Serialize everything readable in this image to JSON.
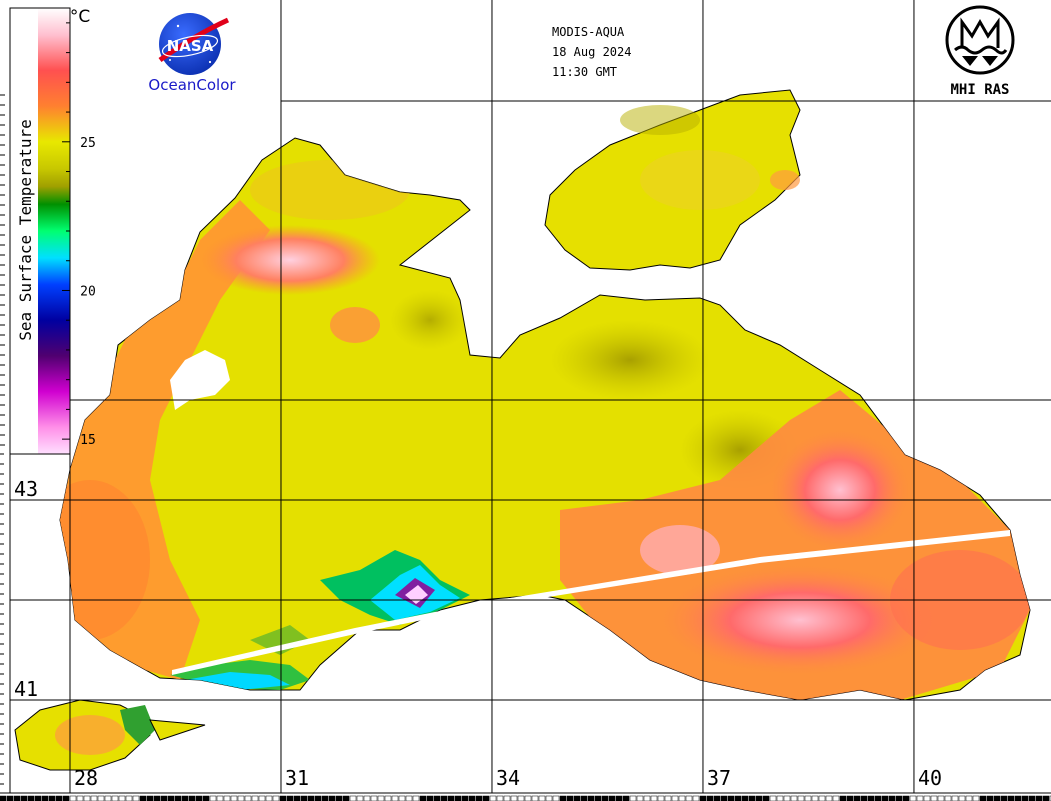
{
  "header": {
    "sensor": "MODIS-AQUA",
    "date": "18 Aug 2024",
    "time": "11:30 GMT"
  },
  "logos": {
    "nasa_text": "NASA",
    "oceancolor_text": "OceanColor",
    "mhi_text": "MHI RAS"
  },
  "colorbar": {
    "title": "Sea Surface Temperature",
    "unit": "°C",
    "ticks": [
      {
        "label": "25",
        "value": 25
      },
      {
        "label": "20",
        "value": 20
      },
      {
        "label": "15",
        "value": 15
      }
    ],
    "range": [
      14.5,
      29.5
    ],
    "colors": [
      "#ffffff",
      "#ff8fe8",
      "#d000d0",
      "#400060",
      "#0000ff",
      "#00e0ff",
      "#00ff70",
      "#009000",
      "#c0c000",
      "#e8e800",
      "#ffb000",
      "#ff7030",
      "#ff4040",
      "#ffc0d0",
      "#ffffff"
    ]
  },
  "grid": {
    "lon_labels": [
      {
        "label": "28",
        "value": 28
      },
      {
        "label": "31",
        "value": 31
      },
      {
        "label": "34",
        "value": 34
      },
      {
        "label": "37",
        "value": 37
      },
      {
        "label": "40",
        "value": 40
      }
    ],
    "lat_labels": [
      {
        "label": "43",
        "value": 43
      },
      {
        "label": "41",
        "value": 41
      }
    ]
  },
  "palette": {
    "land": "#ffffff",
    "sea_yellow": "#e8e400",
    "sea_olive": "#b8b000",
    "sea_orange": "#ff9030",
    "sea_red": "#ff6060",
    "sea_pink": "#ffc8d8",
    "grid_line": "#000000",
    "cloud_stripe": "#ffffff"
  }
}
